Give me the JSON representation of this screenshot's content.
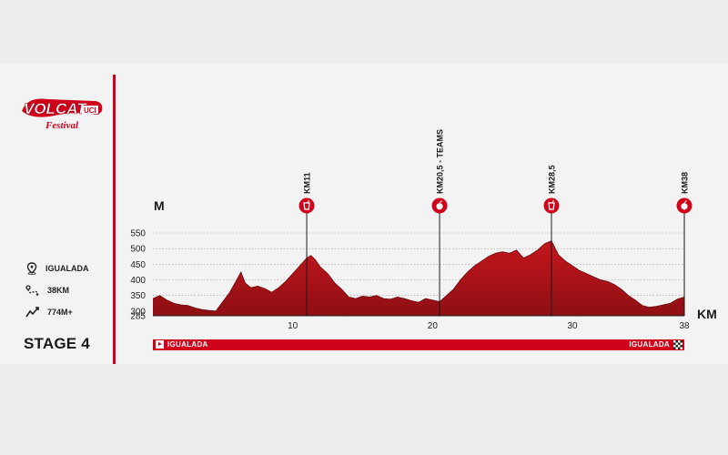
{
  "logo": {
    "text": "VOLCAT",
    "sub": "Festival",
    "badge": "UCI"
  },
  "info": {
    "start": "IGUALADA",
    "distance": "38KM",
    "elevation": "774M+",
    "icons": [
      "location-pin-icon",
      "route-icon",
      "elevation-gain-icon"
    ]
  },
  "stage": "STAGE 4",
  "route": {
    "start": "IGUALADA",
    "end": "IGUALADA"
  },
  "colors": {
    "accent": "#d0021b",
    "profile": "#b3131b",
    "background": "#f3f3f3"
  },
  "chart_data": {
    "type": "area",
    "ylabel": "M",
    "xlabel": "KM",
    "xlim": [
      0,
      38
    ],
    "ylim": [
      285,
      550
    ],
    "xticks": [
      10,
      20,
      30,
      38
    ],
    "yticks": [
      285,
      300,
      350,
      400,
      450,
      500,
      550
    ],
    "grid": "horizontal dotted",
    "profile": {
      "x": [
        0,
        0.5,
        1,
        1.5,
        2,
        2.5,
        3,
        3.5,
        4,
        4.5,
        5,
        5.5,
        6,
        6.3,
        6.6,
        7,
        7.5,
        8,
        8.5,
        9,
        9.5,
        10,
        10.5,
        11,
        11.3,
        11.6,
        12,
        12.5,
        13,
        13.5,
        14,
        14.5,
        15,
        15.5,
        16,
        16.5,
        17,
        17.5,
        18,
        18.5,
        19,
        19.5,
        20,
        20.5,
        21,
        21.5,
        22,
        22.5,
        23,
        23.5,
        24,
        24.5,
        25,
        25.5,
        26,
        26.5,
        27,
        27.5,
        28,
        28.5,
        29,
        29.5,
        30,
        30.5,
        31,
        31.5,
        32,
        32.5,
        33,
        33.5,
        34,
        34.5,
        35,
        35.5,
        36,
        36.5,
        37,
        37.5,
        38
      ],
      "y": [
        340,
        350,
        335,
        325,
        320,
        318,
        310,
        305,
        302,
        300,
        330,
        360,
        400,
        425,
        390,
        375,
        380,
        372,
        360,
        375,
        395,
        420,
        445,
        470,
        478,
        465,
        440,
        420,
        390,
        370,
        345,
        340,
        348,
        345,
        350,
        340,
        338,
        345,
        340,
        333,
        328,
        340,
        335,
        330,
        350,
        370,
        400,
        425,
        445,
        460,
        475,
        485,
        490,
        485,
        495,
        470,
        480,
        495,
        515,
        525,
        480,
        460,
        445,
        430,
        420,
        410,
        400,
        395,
        385,
        370,
        350,
        335,
        318,
        312,
        315,
        320,
        325,
        338,
        345
      ]
    },
    "markers": [
      {
        "km": 11,
        "label": "KM11",
        "icon": "drink-cup-icon"
      },
      {
        "km": 20.5,
        "label": "KM20,5 - TEAMS",
        "icon": "food-apple-icon"
      },
      {
        "km": 28.5,
        "label": "KM28,5",
        "icon": "drink-cup-icon"
      },
      {
        "km": 38,
        "label": "KM38",
        "icon": "food-apple-icon"
      }
    ]
  }
}
